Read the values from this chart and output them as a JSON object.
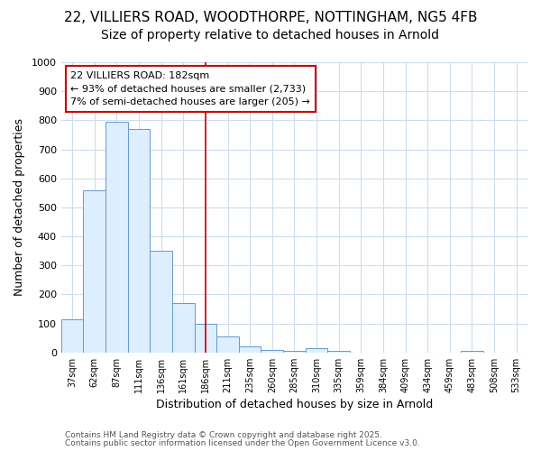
{
  "title1": "22, VILLIERS ROAD, WOODTHORPE, NOTTINGHAM, NG5 4FB",
  "title2": "Size of property relative to detached houses in Arnold",
  "xlabel": "Distribution of detached houses by size in Arnold",
  "ylabel": "Number of detached properties",
  "categories": [
    "37sqm",
    "62sqm",
    "87sqm",
    "111sqm",
    "136sqm",
    "161sqm",
    "186sqm",
    "211sqm",
    "235sqm",
    "260sqm",
    "285sqm",
    "310sqm",
    "335sqm",
    "359sqm",
    "384sqm",
    "409sqm",
    "434sqm",
    "459sqm",
    "483sqm",
    "508sqm",
    "533sqm"
  ],
  "values": [
    115,
    560,
    795,
    770,
    350,
    170,
    100,
    55,
    20,
    10,
    5,
    15,
    5,
    0,
    0,
    0,
    0,
    0,
    5,
    0,
    0
  ],
  "bar_color": "#ddeeff",
  "bar_edge_color": "#6699cc",
  "vline_x_index": 6,
  "vline_color": "#cc0000",
  "annotation_lines": [
    "22 VILLIERS ROAD: 182sqm",
    "← 93% of detached houses are smaller (2,733)",
    "7% of semi-detached houses are larger (205) →"
  ],
  "annotation_box_color": "#cc0000",
  "ylim": [
    0,
    1000
  ],
  "yticks": [
    0,
    100,
    200,
    300,
    400,
    500,
    600,
    700,
    800,
    900,
    1000
  ],
  "footer1": "Contains HM Land Registry data © Crown copyright and database right 2025.",
  "footer2": "Contains public sector information licensed under the Open Government Licence v3.0.",
  "bg_color": "#ffffff",
  "grid_color": "#ccdcee",
  "title1_fontsize": 11,
  "title2_fontsize": 10
}
